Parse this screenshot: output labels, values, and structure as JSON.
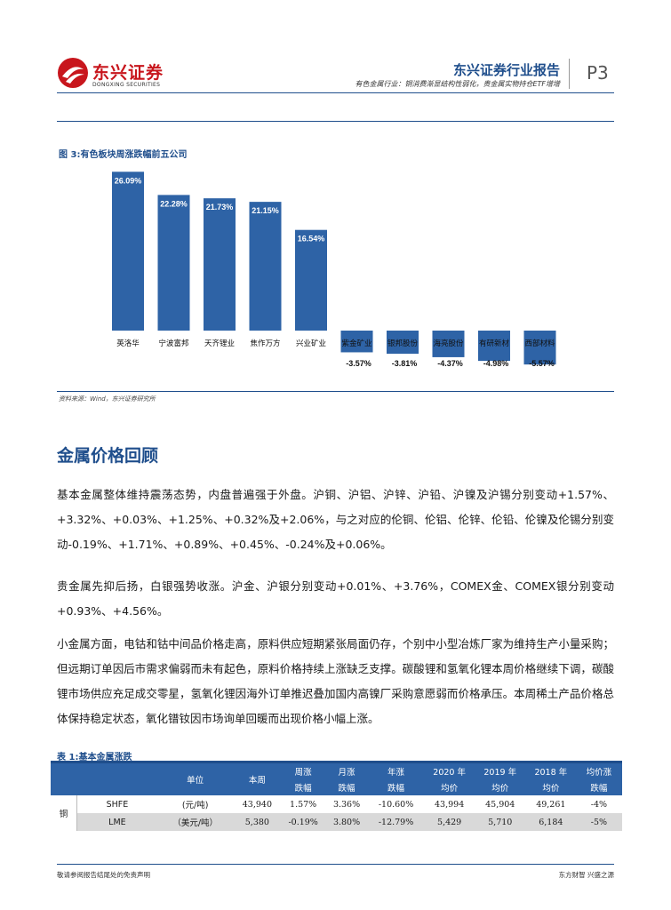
{
  "header": {
    "logo_cn": "东兴证券",
    "logo_en": "DONGXING SECURITIES",
    "report_title": "东兴证券行业报告",
    "report_subtitle": "有色金属行业：铜消费渐显结构性弱化，贵金属实物持仓ETF增增",
    "page": "P3"
  },
  "colors": {
    "accent": "#1f4e8c",
    "bar": "#2e63a6",
    "brand_red": "#c8161d"
  },
  "figure": {
    "title": "图 3:有色板块周涨跌幅前五公司",
    "source": "资料来源：Wind，东兴证券研究所"
  },
  "chart_data": {
    "type": "bar",
    "categories": [
      "英洛华",
      "宁波富邦",
      "天齐锂业",
      "焦作万方",
      "兴业矿业",
      "紫金矿业",
      "银邦股份",
      "海亮股份",
      "有研新材",
      "西部材料"
    ],
    "values": [
      26.09,
      22.28,
      21.73,
      21.15,
      16.54,
      -3.57,
      -3.81,
      -4.37,
      -4.98,
      -5.57
    ],
    "labels": [
      "26.09%",
      "22.28%",
      "21.73%",
      "21.15%",
      "16.54%",
      "-3.57%",
      "-3.81%",
      "-4.37%",
      "-4.98%",
      "-5.57%"
    ],
    "title": "",
    "ylim": [
      -6.5,
      27.5
    ],
    "grid": false
  },
  "section": {
    "title": "金属价格回顾",
    "paragraphs": [
      "基本金属整体维持震荡态势，内盘普遍强于外盘。沪铜、沪铝、沪锌、沪铅、沪镍及沪锡分别变动+1.57%、+3.32%、+0.03%、+1.25%、+0.32%及+2.06%，与之对应的伦铜、伦铝、伦锌、伦铅、伦镍及伦锡分别变动-0.19%、+1.71%、+0.89%、+0.45%、-0.24%及+0.06%。",
      "贵金属先抑后扬，白银强势收涨。沪金、沪银分别变动+0.01%、+3.76%，COMEX金、COMEX银分别变动+0.93%、+4.56%。",
      "小金属方面，电钴和钴中间品价格走高，原料供应短期紧张局面仍存，个别中小型冶炼厂家为维持生产小量采购；但远期订单因后市需求偏弱而未有起色，原料价格持续上涨缺乏支撑。碳酸锂和氢氧化锂本周价格继续下调，碳酸锂市场供应充足成交零星，氢氧化锂因海外订单推迟叠加国内高镍厂采购意愿弱而价格承压。本周稀土产品价格总体保持稳定状态，氧化镨钕因市场询单回暖而出现价格小幅上涨。"
    ]
  },
  "table": {
    "title": "表 1:基本金属涨跌",
    "headers": {
      "unit": "单位",
      "current": "本周",
      "week_top": "周涨",
      "week_bot": "跌幅",
      "month_top": "月涨",
      "month_bot": "跌幅",
      "year_top": "年涨",
      "year_bot": "跌幅",
      "y2020_top": "2020 年",
      "y2020_bot": "均价",
      "y2019_top": "2019 年",
      "y2019_bot": "均价",
      "y2018_top": "2018 年",
      "y2018_bot": "均价",
      "avg_top": "均价涨",
      "avg_bot": "跌幅"
    },
    "metal": "铜",
    "rows": [
      {
        "exchange": "SHFE",
        "unit": "(元/吨)",
        "current": "43,940",
        "week": "1.57%",
        "month": "3.36%",
        "year": "-10.60%",
        "y2020": "43,994",
        "y2019": "45,904",
        "y2018": "49,261",
        "avg": "-4%"
      },
      {
        "exchange": "LME",
        "unit": "（美元/吨）",
        "current": "5,380",
        "week": "-0.19%",
        "month": "3.80%",
        "year": "-12.79%",
        "y2020": "5,429",
        "y2019": "5,710",
        "y2018": "6,184",
        "avg": "-5%"
      }
    ]
  },
  "footer": {
    "left": "敬请参阅报告结尾处的免责声明",
    "right": "东方财智  兴盛之源"
  }
}
